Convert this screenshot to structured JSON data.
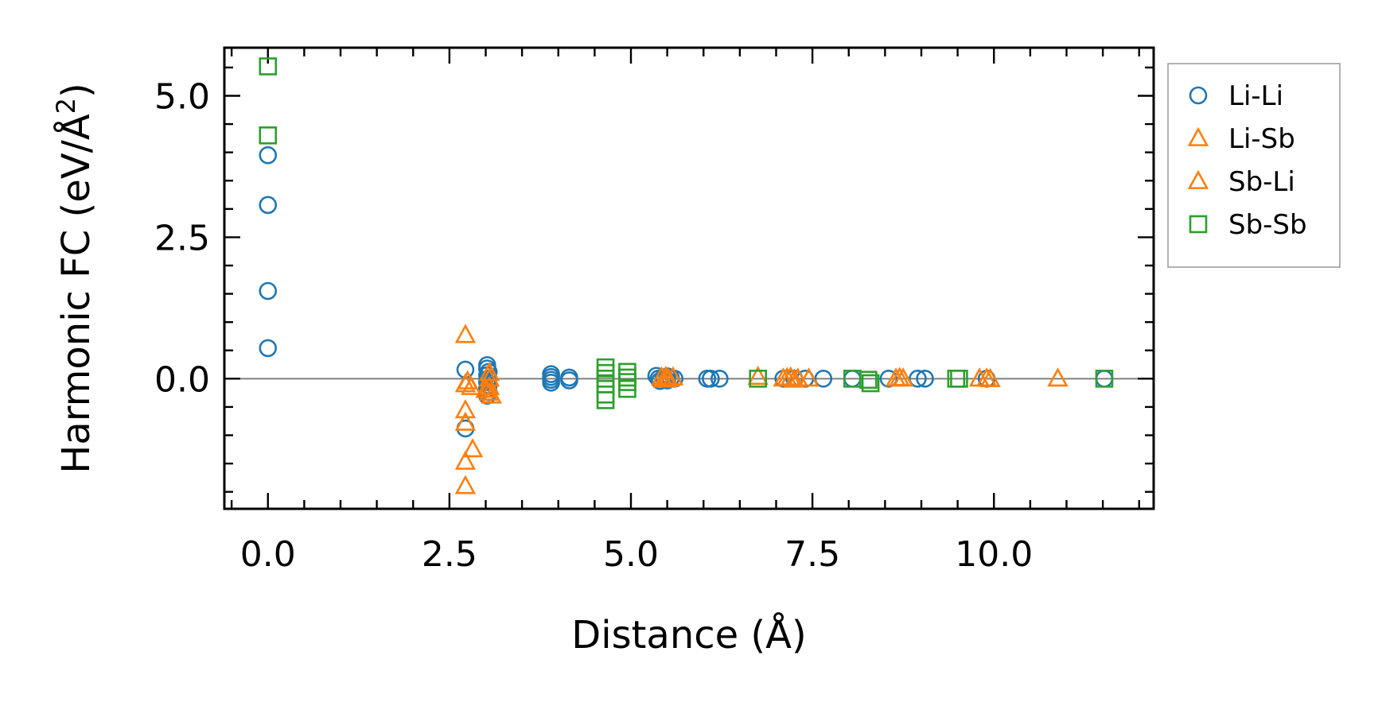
{
  "chart_data": {
    "type": "scatter",
    "xlabel": "Distance (Å)",
    "ylabel_main": "Harmonic FC (eV/Å",
    "ylabel_sup": "2",
    "ylabel_close": ")",
    "xlim": [
      -0.6,
      12.2
    ],
    "ylim": [
      -2.3,
      5.85
    ],
    "xticks": [
      0.0,
      2.5,
      5.0,
      7.5,
      10.0
    ],
    "xtick_labels": [
      "0.0",
      "2.5",
      "5.0",
      "7.5",
      "10.0"
    ],
    "yticks": [
      0.0,
      2.5,
      5.0
    ],
    "ytick_labels": [
      "0.0",
      "2.5",
      "5.0"
    ],
    "x_minor_step": 0.5,
    "y_minor_step": 0.5,
    "zero_line": true,
    "legend_position": "outside-right-top",
    "series": [
      {
        "name": "Li-Li",
        "marker": "circle",
        "color": "#1f77b4",
        "points": [
          [
            0.0,
            3.95
          ],
          [
            0.0,
            3.07
          ],
          [
            0.0,
            1.55
          ],
          [
            0.0,
            0.54
          ],
          [
            2.72,
            0.16
          ],
          [
            2.72,
            -0.88
          ],
          [
            3.02,
            0.24
          ],
          [
            3.02,
            0.18
          ],
          [
            3.04,
            0.12
          ],
          [
            3.02,
            0.06
          ],
          [
            3.04,
            0.0
          ],
          [
            3.02,
            -0.06
          ],
          [
            3.04,
            -0.12
          ],
          [
            3.02,
            -0.18
          ],
          [
            3.04,
            -0.24
          ],
          [
            3.02,
            -0.3
          ],
          [
            3.9,
            0.08
          ],
          [
            3.9,
            0.03
          ],
          [
            3.9,
            -0.02
          ],
          [
            3.9,
            -0.07
          ],
          [
            4.15,
            0.02
          ],
          [
            4.15,
            -0.03
          ],
          [
            5.35,
            0.05
          ],
          [
            5.38,
            0.0
          ],
          [
            5.4,
            -0.04
          ],
          [
            5.45,
            0.02
          ],
          [
            5.5,
            0.04
          ],
          [
            5.5,
            -0.03
          ],
          [
            5.55,
            0.01
          ],
          [
            5.6,
            0.0
          ],
          [
            6.05,
            0.0
          ],
          [
            6.1,
            0.0
          ],
          [
            6.22,
            0.0
          ],
          [
            7.1,
            0.0
          ],
          [
            7.25,
            0.0
          ],
          [
            7.4,
            0.0
          ],
          [
            7.65,
            0.0
          ],
          [
            8.05,
            0.0
          ],
          [
            8.55,
            0.0
          ],
          [
            8.95,
            0.0
          ],
          [
            9.05,
            0.0
          ],
          [
            9.9,
            0.0
          ],
          [
            11.52,
            0.0
          ]
        ]
      },
      {
        "name": "Li-Sb",
        "marker": "triangle",
        "color": "#ff7f0e",
        "points": [
          [
            2.72,
            0.77
          ],
          [
            2.72,
            -0.1
          ],
          [
            2.72,
            -0.56
          ],
          [
            2.72,
            -0.78
          ],
          [
            2.72,
            -1.47
          ],
          [
            2.72,
            -1.9
          ],
          [
            2.8,
            -0.15
          ],
          [
            2.82,
            -1.25
          ],
          [
            3.05,
            0.1
          ],
          [
            3.05,
            0.0
          ],
          [
            3.05,
            -0.15
          ],
          [
            3.05,
            -0.25
          ],
          [
            5.42,
            0.02
          ],
          [
            5.48,
            0.03
          ],
          [
            5.52,
            -0.01
          ],
          [
            5.58,
            0.02
          ],
          [
            6.75,
            0.03
          ],
          [
            7.1,
            0.0
          ],
          [
            7.2,
            0.02
          ],
          [
            7.3,
            0.0
          ],
          [
            7.45,
            0.0
          ],
          [
            8.65,
            0.0
          ],
          [
            8.75,
            0.0
          ],
          [
            9.8,
            0.0
          ],
          [
            9.9,
            0.0
          ],
          [
            10.88,
            0.0
          ]
        ]
      },
      {
        "name": "Sb-Li",
        "marker": "triangle",
        "color": "#ff7f0e",
        "points": [
          [
            2.75,
            -0.05
          ],
          [
            3.0,
            -0.2
          ],
          [
            3.08,
            -0.3
          ],
          [
            5.45,
            -0.02
          ],
          [
            5.5,
            0.0
          ],
          [
            7.15,
            0.01
          ],
          [
            7.25,
            -0.02
          ],
          [
            8.7,
            0.01
          ],
          [
            9.95,
            -0.01
          ]
        ]
      },
      {
        "name": "Sb-Sb",
        "marker": "square",
        "color": "#2ca02c",
        "points": [
          [
            0.0,
            5.52
          ],
          [
            0.0,
            4.3
          ],
          [
            4.65,
            0.2
          ],
          [
            4.65,
            0.1
          ],
          [
            4.65,
            0.0
          ],
          [
            4.65,
            -0.1
          ],
          [
            4.65,
            -0.28
          ],
          [
            4.65,
            -0.38
          ],
          [
            4.95,
            0.12
          ],
          [
            4.95,
            0.02
          ],
          [
            4.95,
            -0.06
          ],
          [
            4.95,
            -0.18
          ],
          [
            6.75,
            0.0
          ],
          [
            8.05,
            0.0
          ],
          [
            8.27,
            -0.02
          ],
          [
            8.3,
            -0.08
          ],
          [
            9.48,
            0.0
          ],
          [
            9.52,
            0.0
          ],
          [
            11.52,
            0.0
          ]
        ]
      }
    ]
  }
}
